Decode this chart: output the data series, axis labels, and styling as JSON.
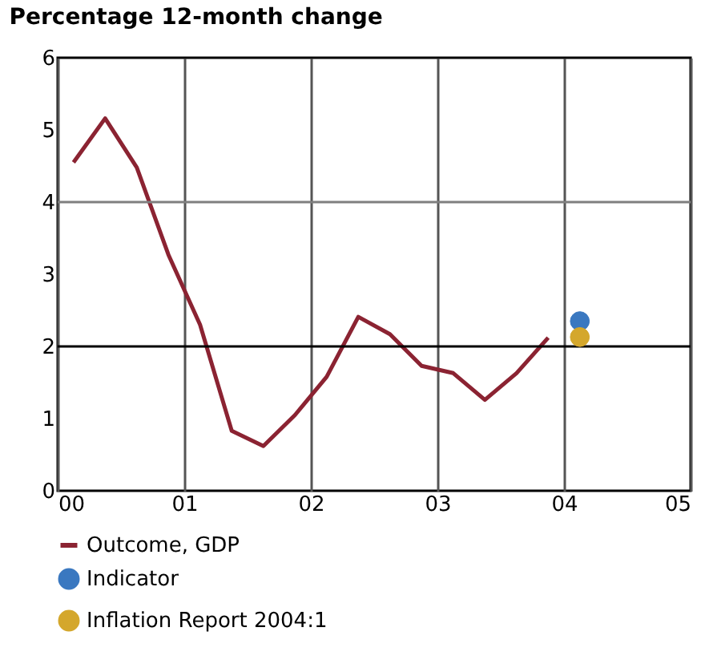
{
  "chart_data": {
    "type": "line",
    "title": "Percentage 12-month change",
    "xlim": [
      0,
      5
    ],
    "xticks": [
      {
        "value": 0,
        "label": "00"
      },
      {
        "value": 1,
        "label": "01"
      },
      {
        "value": 2,
        "label": "02"
      },
      {
        "value": 3,
        "label": "03"
      },
      {
        "value": 4,
        "label": "04"
      },
      {
        "value": 5,
        "label": "05"
      }
    ],
    "ylim": [
      0,
      6
    ],
    "yticks": [
      0,
      1,
      2,
      3,
      4,
      5,
      6
    ],
    "grid": "x",
    "legend": "bottom",
    "ref_lines": [
      {
        "axis": "y",
        "value": 2,
        "color": "#000000"
      },
      {
        "axis": "y",
        "value": 4,
        "color": "#7f7f7f"
      }
    ],
    "series": [
      {
        "name": "Outcome, GDP",
        "type": "line",
        "marker": "none",
        "color": "#8b2332",
        "x": [
          0.125,
          0.375,
          0.625,
          0.875,
          1.125,
          1.375,
          1.625,
          1.875,
          2.125,
          2.375,
          2.625,
          2.875,
          3.125,
          3.375,
          3.625,
          3.875
        ],
        "values": [
          4.55,
          5.16,
          4.48,
          3.27,
          2.3,
          0.83,
          0.62,
          1.05,
          1.58,
          2.41,
          2.17,
          1.73,
          1.63,
          1.26,
          1.63,
          2.12
        ]
      },
      {
        "name": "Indicator",
        "type": "scatter",
        "marker": "circle",
        "color": "#3a78c0",
        "x": [
          4.125
        ],
        "values": [
          2.35
        ]
      },
      {
        "name": "Inflation Report 2004:1",
        "type": "scatter",
        "marker": "circle",
        "color": "#d4a72c",
        "x": [
          4.125
        ],
        "values": [
          2.13
        ]
      }
    ]
  }
}
